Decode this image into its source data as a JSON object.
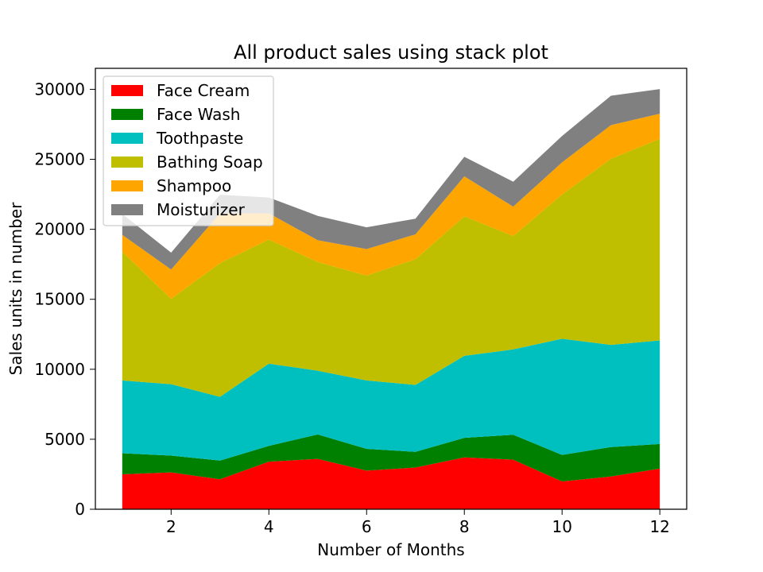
{
  "chart_data": {
    "type": "area",
    "stacked": true,
    "title": "All product sales using stack plot",
    "xlabel": "Number of Months",
    "ylabel": "Sales units in number",
    "x": [
      1,
      2,
      3,
      4,
      5,
      6,
      7,
      8,
      9,
      10,
      11,
      12
    ],
    "xlim": [
      0.45,
      12.55
    ],
    "ylim": [
      0,
      31500
    ],
    "xticks": [
      2,
      4,
      6,
      8,
      10,
      12
    ],
    "yticks": [
      0,
      5000,
      10000,
      15000,
      20000,
      25000,
      30000
    ],
    "grid": false,
    "legend_position": "top-left",
    "series": [
      {
        "name": "Face Cream",
        "color": "#ff0000",
        "values": [
          2500,
          2630,
          2140,
          3400,
          3600,
          2760,
          2980,
          3700,
          3540,
          1990,
          2340,
          2900
        ]
      },
      {
        "name": "Face Wash",
        "color": "#008000",
        "values": [
          1500,
          1200,
          1340,
          1130,
          1740,
          1555,
          1120,
          1400,
          1780,
          1890,
          2100,
          1760
        ]
      },
      {
        "name": "Toothpaste",
        "color": "#00bfbf",
        "values": [
          5200,
          5100,
          4550,
          5870,
          4560,
          4890,
          4780,
          5860,
          6100,
          8300,
          7300,
          7400
        ]
      },
      {
        "name": "Bathing Soap",
        "color": "#bfbf00",
        "values": [
          9200,
          6100,
          9550,
          8870,
          7760,
          7490,
          8980,
          9960,
          8100,
          10300,
          13300,
          14400
        ]
      },
      {
        "name": "Shampoo",
        "color": "#ffa500",
        "values": [
          1200,
          2100,
          3550,
          1870,
          1560,
          1890,
          1780,
          2860,
          2100,
          2300,
          2400,
          1800
        ]
      },
      {
        "name": "Moisturizer",
        "color": "#808080",
        "values": [
          1500,
          1200,
          1340,
          1130,
          1740,
          1555,
          1120,
          1400,
          1780,
          1890,
          2100,
          1760
        ]
      }
    ]
  }
}
